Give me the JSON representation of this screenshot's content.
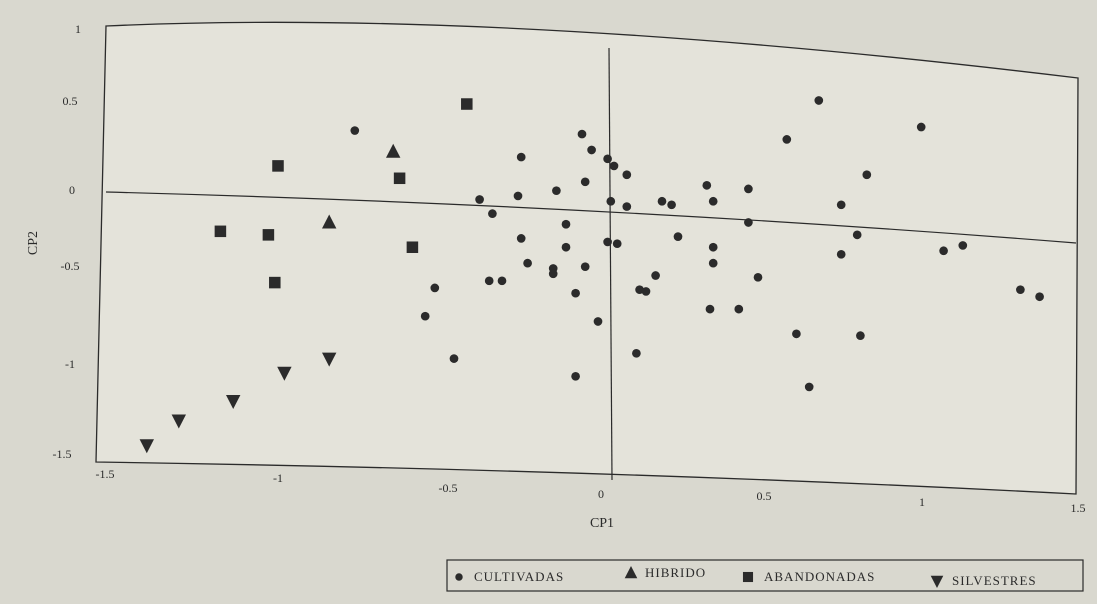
{
  "colors": {
    "paper": "#d9d8cf",
    "ink": "#2b2b2b",
    "plot_fill": "#e4e3da"
  },
  "chart_data": {
    "type": "scatter",
    "title": "",
    "xlabel": "CP1",
    "ylabel": "CP2",
    "xlim": [
      -1.5,
      1.5
    ],
    "ylim": [
      -1.5,
      1
    ],
    "x_ticks": [
      {
        "value": -1.5,
        "label": "-1.5"
      },
      {
        "value": -1,
        "label": "-1"
      },
      {
        "value": -0.5,
        "label": "-0.5"
      },
      {
        "value": 0,
        "label": "0"
      },
      {
        "value": 0.5,
        "label": "0.5"
      },
      {
        "value": 1,
        "label": "1"
      },
      {
        "value": 1.5,
        "label": "1.5"
      }
    ],
    "y_ticks": [
      {
        "value": 1,
        "label": "1"
      },
      {
        "value": 0.5,
        "label": "0.5"
      },
      {
        "value": 0,
        "label": "0"
      },
      {
        "value": -0.5,
        "label": "-0.5"
      },
      {
        "value": -1,
        "label": "-1"
      },
      {
        "value": -1.5,
        "label": "-1.5"
      }
    ],
    "grid": false,
    "reference_lines": [
      "x=0",
      "y=0"
    ],
    "legend_position": "bottom-right",
    "series": [
      {
        "name": "CULTIVADAS",
        "marker": "circle",
        "points": [
          [
            -0.76,
            0.42
          ],
          [
            -0.51,
            -0.47
          ],
          [
            -0.54,
            -0.63
          ],
          [
            -0.45,
            -0.87
          ],
          [
            -0.37,
            0.03
          ],
          [
            -0.33,
            -0.05
          ],
          [
            -0.34,
            -0.43
          ],
          [
            -0.3,
            -0.43
          ],
          [
            -0.25,
            0.05
          ],
          [
            -0.24,
            0.27
          ],
          [
            -0.24,
            -0.19
          ],
          [
            -0.22,
            -0.33
          ],
          [
            -0.13,
            0.08
          ],
          [
            -0.14,
            -0.36
          ],
          [
            -0.14,
            -0.39
          ],
          [
            -0.1,
            -0.11
          ],
          [
            -0.1,
            -0.24
          ],
          [
            -0.07,
            -0.5
          ],
          [
            -0.05,
            0.4
          ],
          [
            -0.04,
            0.13
          ],
          [
            -0.04,
            -0.35
          ],
          [
            -0.02,
            0.31
          ],
          [
            0.0,
            -0.66
          ],
          [
            -0.07,
            -0.97
          ],
          [
            0.03,
            0.26
          ],
          [
            0.05,
            0.22
          ],
          [
            0.04,
            0.02
          ],
          [
            0.03,
            -0.21
          ],
          [
            0.06,
            -0.22
          ],
          [
            0.09,
            0.17
          ],
          [
            0.09,
            -0.01
          ],
          [
            0.13,
            -0.48
          ],
          [
            0.15,
            -0.49
          ],
          [
            0.18,
            -0.4
          ],
          [
            0.12,
            -0.84
          ],
          [
            0.2,
            0.02
          ],
          [
            0.23,
            0.0
          ],
          [
            0.25,
            -0.18
          ],
          [
            0.34,
            0.11
          ],
          [
            0.36,
            0.02
          ],
          [
            0.36,
            -0.24
          ],
          [
            0.36,
            -0.33
          ],
          [
            0.35,
            -0.59
          ],
          [
            0.44,
            -0.59
          ],
          [
            0.47,
            0.09
          ],
          [
            0.47,
            -0.1
          ],
          [
            0.5,
            -0.41
          ],
          [
            0.59,
            0.37
          ],
          [
            0.62,
            -0.73
          ],
          [
            0.66,
            -1.03
          ],
          [
            0.69,
            0.59
          ],
          [
            0.76,
            0.0
          ],
          [
            0.76,
            -0.28
          ],
          [
            0.81,
            -0.17
          ],
          [
            0.84,
            0.17
          ],
          [
            0.82,
            -0.74
          ],
          [
            1.01,
            0.44
          ],
          [
            1.08,
            -0.26
          ],
          [
            1.14,
            -0.23
          ],
          [
            1.32,
            -0.48
          ],
          [
            1.38,
            -0.52
          ]
        ]
      },
      {
        "name": "HIBRIDO",
        "marker": "triangle-up",
        "points": [
          [
            -0.84,
            -0.1
          ],
          [
            -0.64,
            0.3
          ]
        ]
      },
      {
        "name": "ABANDONADAS",
        "marker": "square",
        "points": [
          [
            -1.18,
            -0.15
          ],
          [
            -1.03,
            -0.17
          ],
          [
            -1.01,
            -0.44
          ],
          [
            -1.0,
            0.22
          ],
          [
            -0.62,
            0.15
          ],
          [
            -0.58,
            -0.24
          ],
          [
            -0.41,
            0.57
          ]
        ]
      },
      {
        "name": "SILVESTRES",
        "marker": "triangle-down",
        "points": [
          [
            -1.41,
            -1.36
          ],
          [
            -1.31,
            -1.22
          ],
          [
            -1.14,
            -1.11
          ],
          [
            -0.98,
            -0.95
          ],
          [
            -0.84,
            -0.87
          ]
        ]
      }
    ]
  }
}
